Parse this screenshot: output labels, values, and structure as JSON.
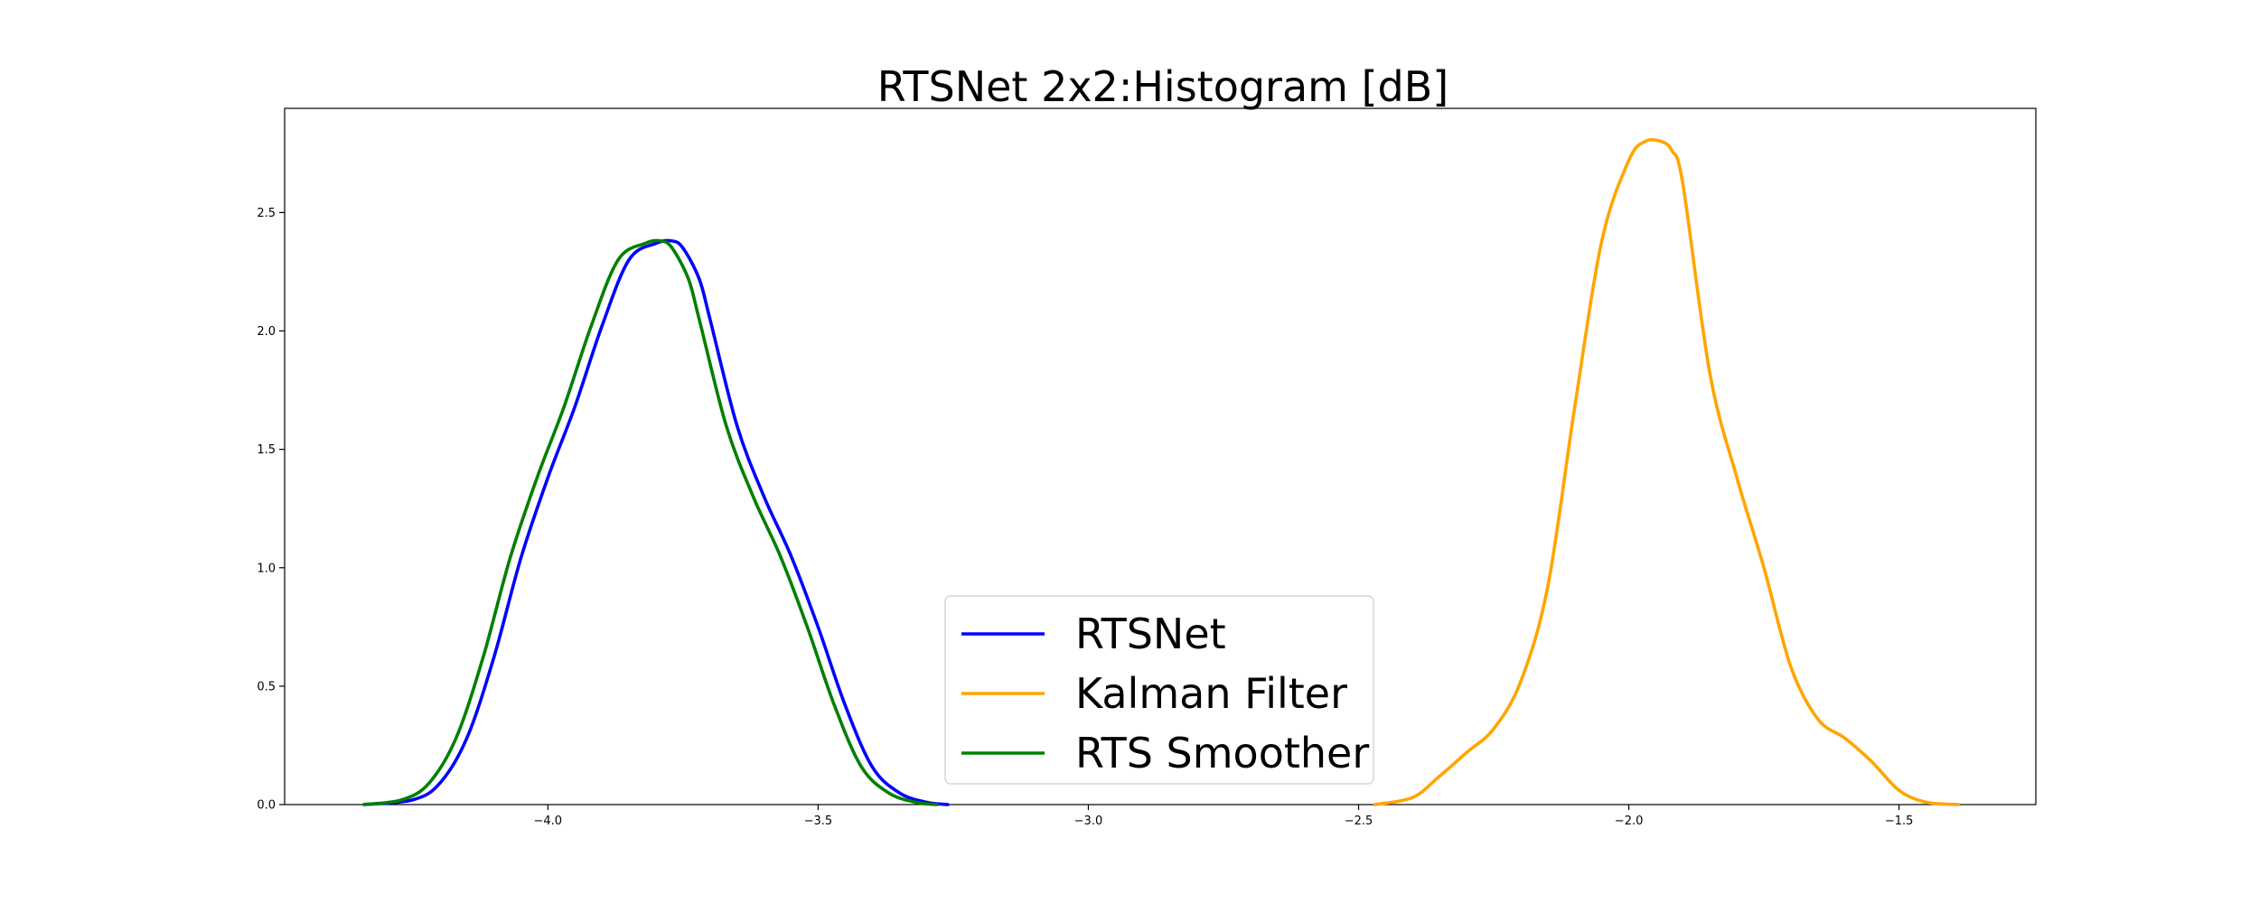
{
  "chart_data": {
    "type": "line",
    "title": "RTSNet 2x2:Histogram [dB]",
    "xlabel": "",
    "ylabel": "",
    "xlim": [
      -4.487,
      -1.247
    ],
    "ylim": [
      0,
      2.94
    ],
    "grid": false,
    "legend_position": "lower-center",
    "x_ticks": [
      -4.0,
      -3.5,
      -3.0,
      -2.5,
      -2.0,
      -1.5
    ],
    "x_tick_labels": [
      "−4.0",
      "−3.5",
      "−3.0",
      "−2.5",
      "−2.0",
      "−1.5"
    ],
    "y_ticks": [
      0.0,
      0.5,
      1.0,
      1.5,
      2.0,
      2.5
    ],
    "y_tick_labels": [
      "0.0",
      "0.5",
      "1.0",
      "1.5",
      "2.0",
      "2.5"
    ],
    "series": [
      {
        "name": "RTSNet",
        "color": "#0000ff",
        "x": [
          -4.34,
          -4.25,
          -4.2,
          -4.15,
          -4.1,
          -4.05,
          -4.0,
          -3.95,
          -3.9,
          -3.85,
          -3.8,
          -3.77,
          -3.75,
          -3.72,
          -3.7,
          -3.65,
          -3.6,
          -3.55,
          -3.5,
          -3.45,
          -3.4,
          -3.35,
          -3.3,
          -3.26
        ],
        "y": [
          0.0,
          0.02,
          0.09,
          0.28,
          0.62,
          1.04,
          1.38,
          1.68,
          2.02,
          2.3,
          2.37,
          2.38,
          2.35,
          2.22,
          2.05,
          1.6,
          1.3,
          1.05,
          0.75,
          0.42,
          0.16,
          0.05,
          0.01,
          0.0
        ]
      },
      {
        "name": "Kalman Filter",
        "color": "#ffa500",
        "x": [
          -2.47,
          -2.4,
          -2.35,
          -2.3,
          -2.25,
          -2.2,
          -2.15,
          -2.1,
          -2.05,
          -2.0,
          -1.97,
          -1.94,
          -1.92,
          -1.9,
          -1.85,
          -1.8,
          -1.75,
          -1.7,
          -1.65,
          -1.6,
          -1.55,
          -1.5,
          -1.45,
          -1.39
        ],
        "y": [
          0.0,
          0.03,
          0.12,
          0.22,
          0.32,
          0.52,
          0.92,
          1.68,
          2.38,
          2.72,
          2.8,
          2.8,
          2.76,
          2.62,
          1.82,
          1.38,
          1.0,
          0.58,
          0.36,
          0.28,
          0.18,
          0.06,
          0.01,
          0.0
        ]
      },
      {
        "name": "RTS Smoother",
        "color": "#008000",
        "x": [
          -4.34,
          -4.27,
          -4.22,
          -4.17,
          -4.12,
          -4.07,
          -4.02,
          -3.97,
          -3.92,
          -3.87,
          -3.82,
          -3.79,
          -3.77,
          -3.74,
          -3.72,
          -3.67,
          -3.62,
          -3.57,
          -3.52,
          -3.47,
          -3.42,
          -3.37,
          -3.32,
          -3.28
        ],
        "y": [
          0.0,
          0.02,
          0.09,
          0.28,
          0.62,
          1.04,
          1.38,
          1.68,
          2.02,
          2.3,
          2.37,
          2.38,
          2.35,
          2.22,
          2.05,
          1.6,
          1.3,
          1.05,
          0.75,
          0.42,
          0.16,
          0.05,
          0.01,
          0.0
        ]
      }
    ]
  }
}
